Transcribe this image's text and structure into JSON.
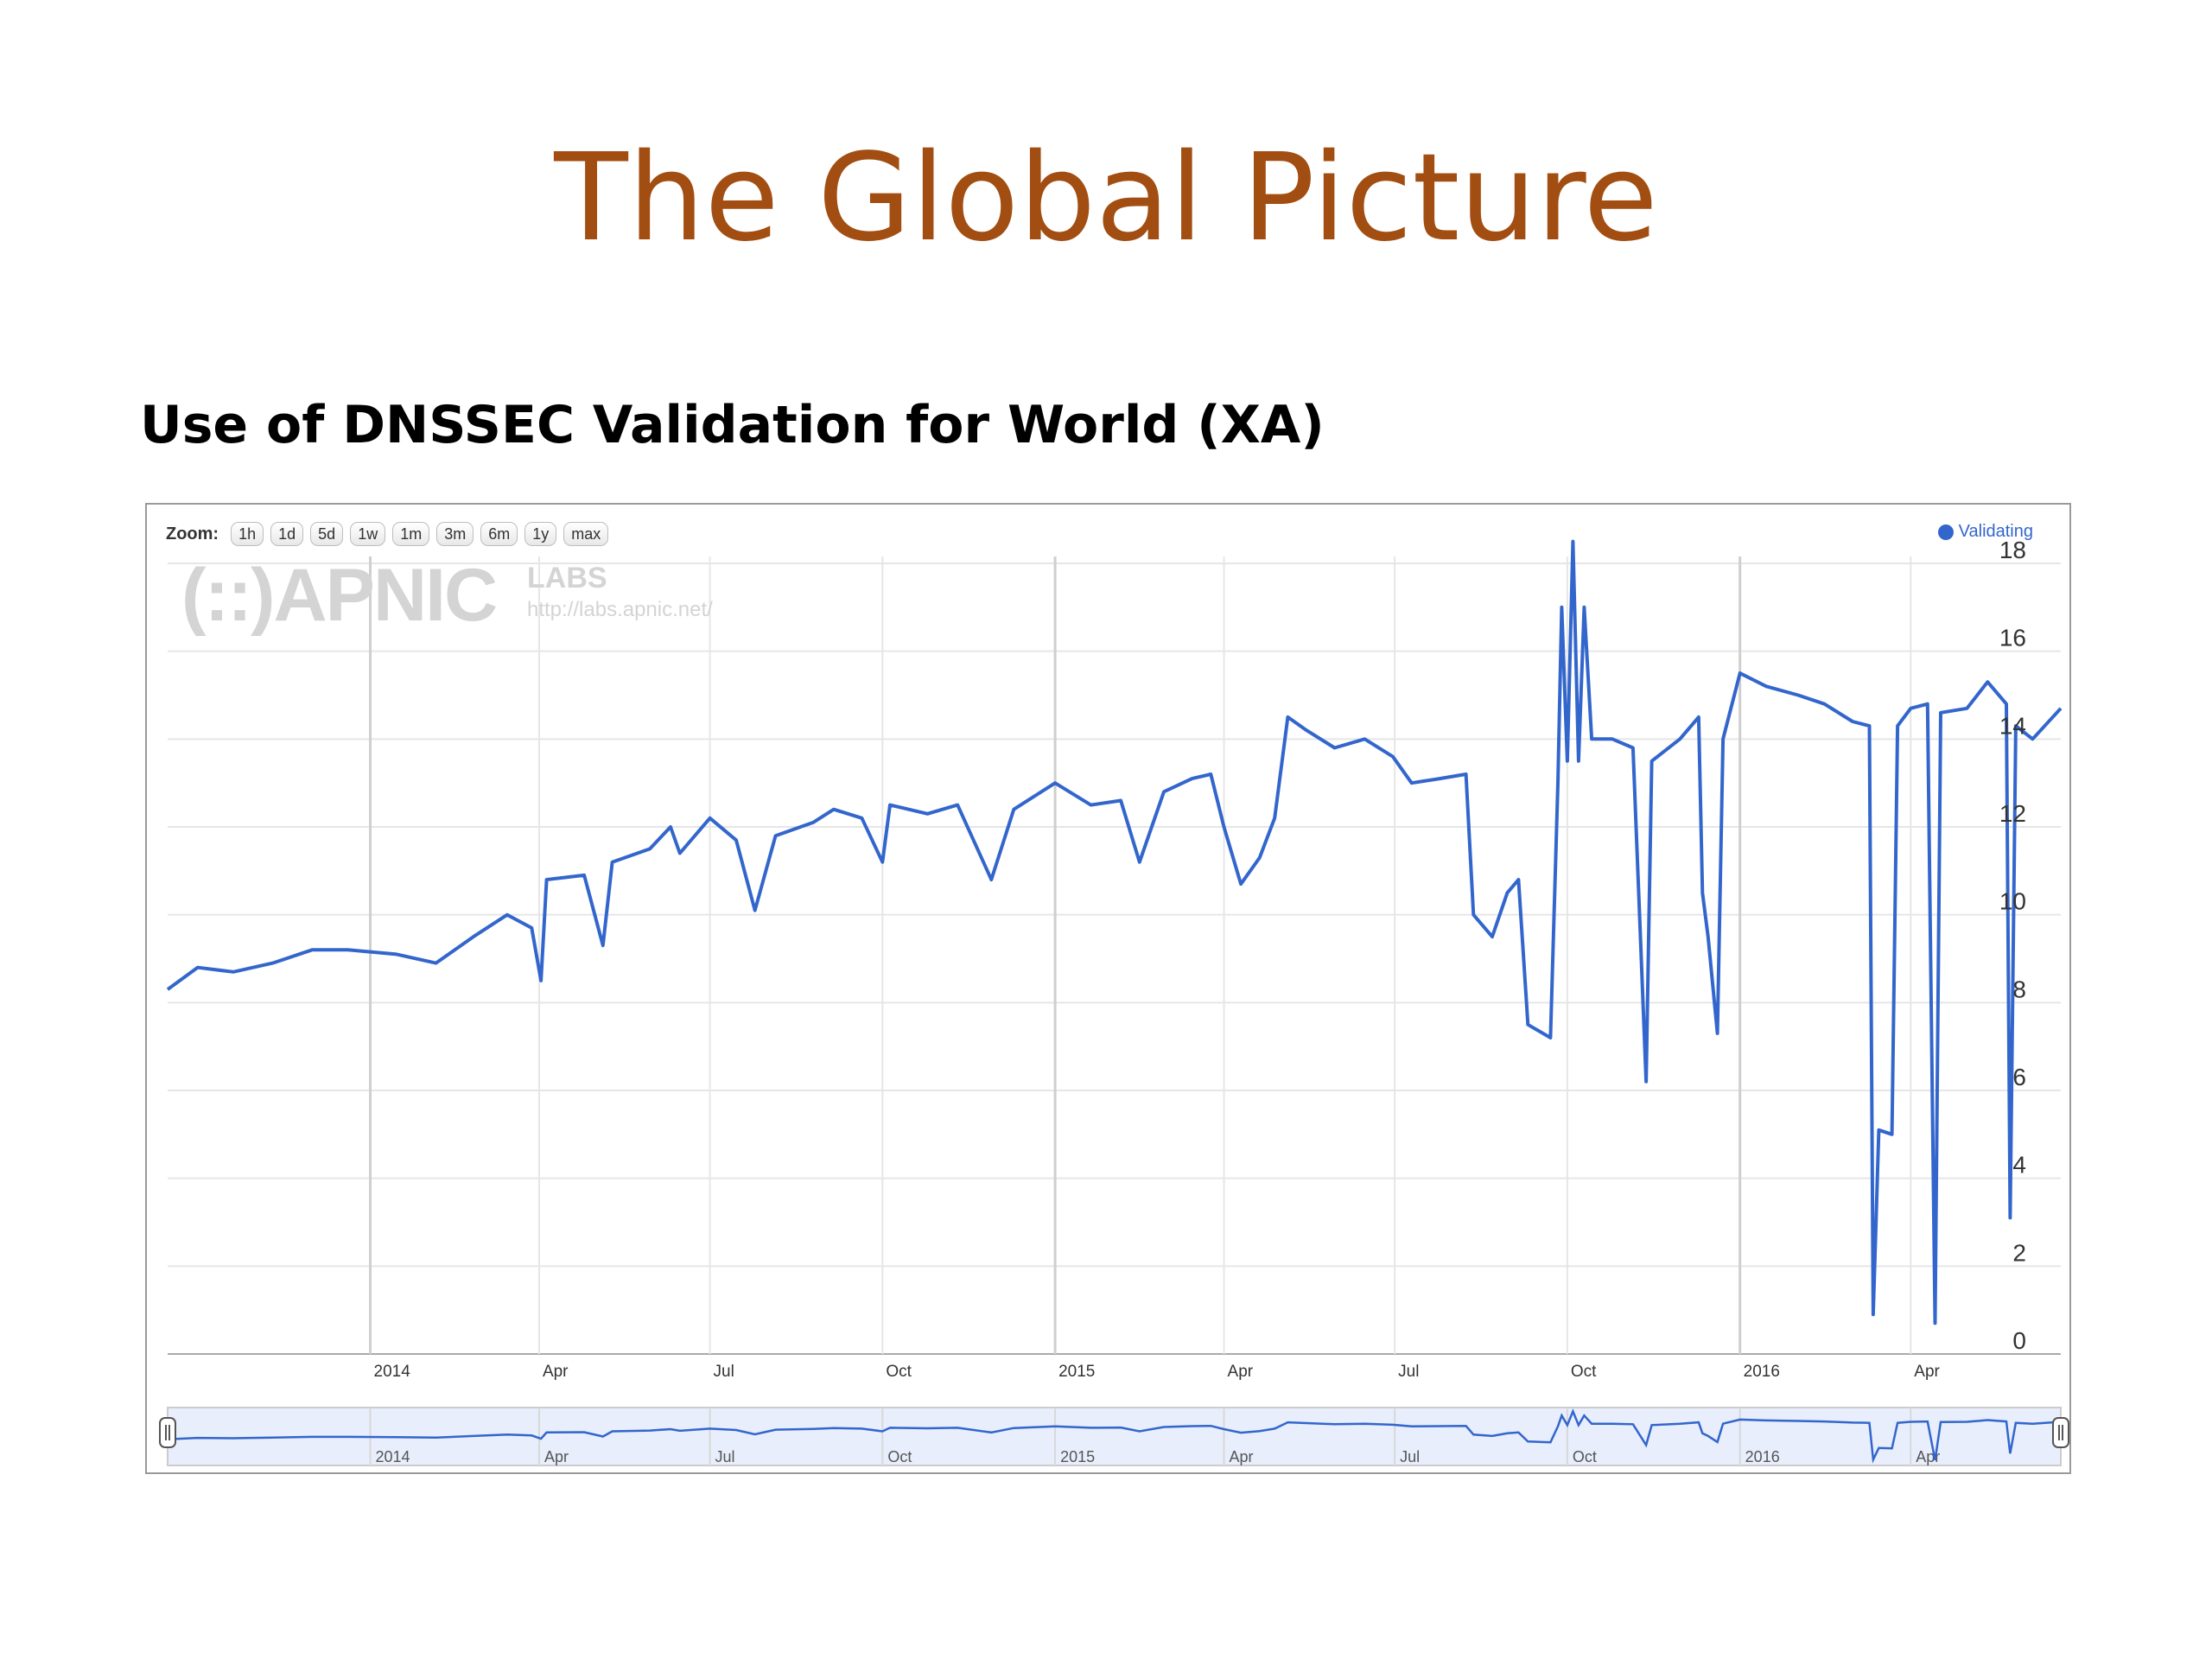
{
  "slide": {
    "title": "The Global Picture"
  },
  "chart_title": "Use of DNSSEC Validation for World (XA)",
  "zoom": {
    "label": "Zoom:",
    "buttons": [
      "1h",
      "1d",
      "5d",
      "1w",
      "1m",
      "3m",
      "6m",
      "1y",
      "max"
    ]
  },
  "watermark": {
    "logo": "(::)APNIC",
    "labs": "LABS",
    "url": "http://labs.apnic.net/"
  },
  "colors": {
    "line": "#3366cc",
    "grid": "#e6e6e6",
    "navigator_fill": "#e8eefc",
    "title": "#a24e12"
  },
  "chart_data": {
    "type": "line",
    "title": "Use of DNSSEC Validation for World (XA)",
    "xlabel": "",
    "ylabel": "",
    "ylim": [
      0,
      18
    ],
    "y_ticks": [
      0,
      2,
      4,
      6,
      8,
      10,
      12,
      14,
      16,
      18
    ],
    "y_axis_position": "right",
    "grid": true,
    "legend": "top-right",
    "x_range": [
      "2013-09-15",
      "2016-06-20"
    ],
    "x_ticks": [
      {
        "date": "2014-01-01",
        "label": "2014"
      },
      {
        "date": "2014-04-01",
        "label": "Apr"
      },
      {
        "date": "2014-07-01",
        "label": "Jul"
      },
      {
        "date": "2014-10-01",
        "label": "Oct"
      },
      {
        "date": "2015-01-01",
        "label": "2015"
      },
      {
        "date": "2015-04-01",
        "label": "Apr"
      },
      {
        "date": "2015-07-01",
        "label": "Jul"
      },
      {
        "date": "2015-10-01",
        "label": "Oct"
      },
      {
        "date": "2016-01-01",
        "label": "2016"
      },
      {
        "date": "2016-04-01",
        "label": "Apr"
      }
    ],
    "series": [
      {
        "name": "Validating",
        "color": "#3366cc",
        "points": [
          [
            "2013-09-15",
            8.3
          ],
          [
            "2013-10-01",
            8.8
          ],
          [
            "2013-10-20",
            8.7
          ],
          [
            "2013-11-10",
            8.9
          ],
          [
            "2013-12-01",
            9.2
          ],
          [
            "2013-12-20",
            9.2
          ],
          [
            "2014-01-15",
            9.1
          ],
          [
            "2014-02-05",
            8.9
          ],
          [
            "2014-02-25",
            9.5
          ],
          [
            "2014-03-15",
            10.0
          ],
          [
            "2014-03-28",
            9.7
          ],
          [
            "2014-04-02",
            8.5
          ],
          [
            "2014-04-05",
            10.8
          ],
          [
            "2014-04-25",
            10.9
          ],
          [
            "2014-05-05",
            9.3
          ],
          [
            "2014-05-10",
            11.2
          ],
          [
            "2014-05-30",
            11.5
          ],
          [
            "2014-06-10",
            12.0
          ],
          [
            "2014-06-15",
            11.4
          ],
          [
            "2014-07-01",
            12.2
          ],
          [
            "2014-07-15",
            11.7
          ],
          [
            "2014-07-25",
            10.1
          ],
          [
            "2014-08-05",
            11.8
          ],
          [
            "2014-08-25",
            12.1
          ],
          [
            "2014-09-05",
            12.4
          ],
          [
            "2014-09-20",
            12.2
          ],
          [
            "2014-10-01",
            11.2
          ],
          [
            "2014-10-05",
            12.5
          ],
          [
            "2014-10-25",
            12.3
          ],
          [
            "2014-11-10",
            12.5
          ],
          [
            "2014-11-28",
            10.8
          ],
          [
            "2014-12-10",
            12.4
          ],
          [
            "2015-01-01",
            13.0
          ],
          [
            "2015-01-20",
            12.5
          ],
          [
            "2015-02-05",
            12.6
          ],
          [
            "2015-02-15",
            11.2
          ],
          [
            "2015-02-28",
            12.8
          ],
          [
            "2015-03-15",
            13.1
          ],
          [
            "2015-03-25",
            13.2
          ],
          [
            "2015-04-01",
            12.0
          ],
          [
            "2015-04-10",
            10.7
          ],
          [
            "2015-04-20",
            11.3
          ],
          [
            "2015-04-28",
            12.2
          ],
          [
            "2015-05-05",
            14.5
          ],
          [
            "2015-05-15",
            14.2
          ],
          [
            "2015-05-30",
            13.8
          ],
          [
            "2015-06-15",
            14.0
          ],
          [
            "2015-06-30",
            13.6
          ],
          [
            "2015-07-10",
            13.0
          ],
          [
            "2015-07-25",
            13.1
          ],
          [
            "2015-08-08",
            13.2
          ],
          [
            "2015-08-12",
            10.0
          ],
          [
            "2015-08-22",
            9.5
          ],
          [
            "2015-08-30",
            10.5
          ],
          [
            "2015-09-05",
            10.8
          ],
          [
            "2015-09-10",
            7.5
          ],
          [
            "2015-09-22",
            7.2
          ],
          [
            "2015-09-26",
            13.0
          ],
          [
            "2015-09-28",
            17.0
          ],
          [
            "2015-10-01",
            13.5
          ],
          [
            "2015-10-04",
            18.5
          ],
          [
            "2015-10-07",
            13.5
          ],
          [
            "2015-10-10",
            17.0
          ],
          [
            "2015-10-14",
            14.0
          ],
          [
            "2015-10-25",
            14.0
          ],
          [
            "2015-11-05",
            13.8
          ],
          [
            "2015-11-12",
            6.2
          ],
          [
            "2015-11-15",
            13.5
          ],
          [
            "2015-11-30",
            14.0
          ],
          [
            "2015-12-10",
            14.5
          ],
          [
            "2015-12-12",
            10.5
          ],
          [
            "2015-12-15",
            9.5
          ],
          [
            "2015-12-20",
            7.3
          ],
          [
            "2015-12-23",
            14.0
          ],
          [
            "2016-01-01",
            15.5
          ],
          [
            "2016-01-15",
            15.2
          ],
          [
            "2016-02-01",
            15.0
          ],
          [
            "2016-02-15",
            14.8
          ],
          [
            "2016-03-01",
            14.4
          ],
          [
            "2016-03-10",
            14.3
          ],
          [
            "2016-03-12",
            0.9
          ],
          [
            "2016-03-15",
            5.1
          ],
          [
            "2016-03-22",
            5.0
          ],
          [
            "2016-03-25",
            14.3
          ],
          [
            "2016-04-01",
            14.7
          ],
          [
            "2016-04-10",
            14.8
          ],
          [
            "2016-04-14",
            0.7
          ],
          [
            "2016-04-17",
            14.6
          ],
          [
            "2016-05-01",
            14.7
          ],
          [
            "2016-05-12",
            15.3
          ],
          [
            "2016-05-22",
            14.8
          ],
          [
            "2016-05-24",
            3.1
          ],
          [
            "2016-05-27",
            14.3
          ],
          [
            "2016-06-05",
            14.0
          ],
          [
            "2016-06-20",
            14.7
          ]
        ]
      }
    ]
  }
}
